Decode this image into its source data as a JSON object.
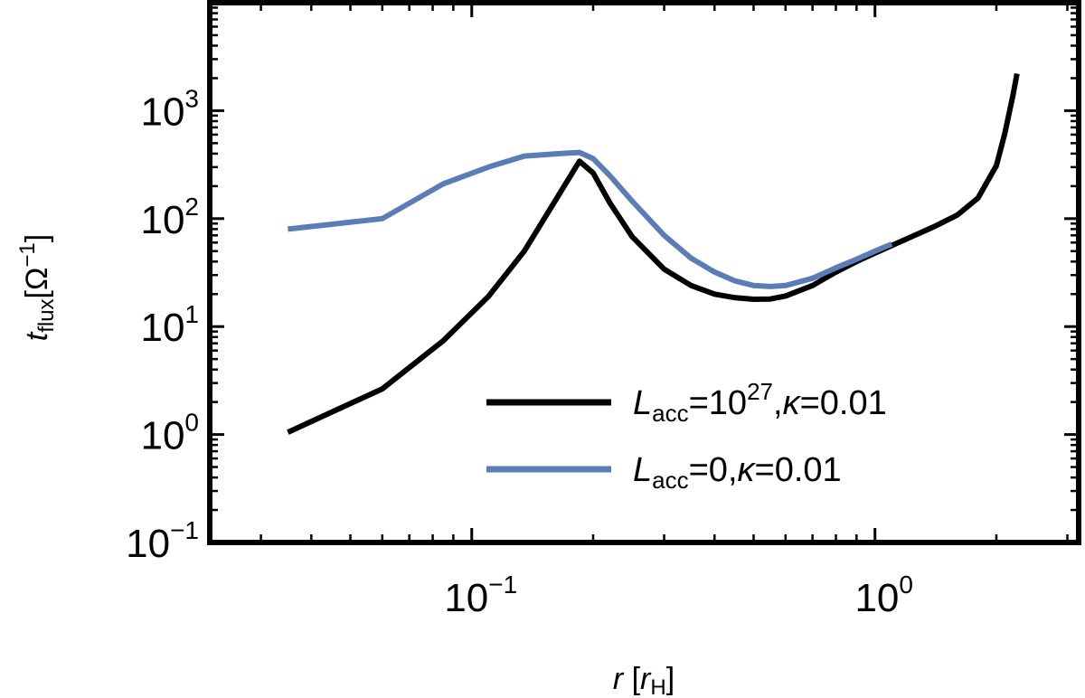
{
  "chart_data": {
    "type": "line",
    "xscale": "log",
    "yscale": "log",
    "xlim": [
      0.0224,
      3.2
    ],
    "ylim": [
      0.1,
      10000
    ],
    "xlabel": {
      "italic": "r",
      "open": " [",
      "italic2": "r",
      "sub": "H",
      "close": "]"
    },
    "ylabel": {
      "italic": "t",
      "sub": "flux",
      "bracket": "[Ω",
      "sup": "−1",
      "close": "]"
    },
    "xticks": [
      {
        "value": 0.1,
        "base": "10",
        "exp": "−1"
      },
      {
        "value": 1,
        "base": "10",
        "exp": "0"
      }
    ],
    "yticks": [
      {
        "value": 0.1,
        "base": "10",
        "exp": "−1"
      },
      {
        "value": 1,
        "base": "10",
        "exp": "0"
      },
      {
        "value": 10,
        "base": "10",
        "exp": "1"
      },
      {
        "value": 100,
        "base": "10",
        "exp": "2"
      },
      {
        "value": 1000,
        "base": "10",
        "exp": "3"
      }
    ],
    "legend_position": "lower-right",
    "series": [
      {
        "name": "Lacc=10^27, κ=0.01",
        "legend": {
          "sym": "L",
          "sub": "acc",
          "eq": "=10",
          "sup": "27",
          "rest": ",",
          "kappa": "κ",
          "tail": "=0.01"
        },
        "color": "#000000",
        "x": [
          0.035,
          0.06,
          0.085,
          0.11,
          0.135,
          0.165,
          0.185,
          0.2,
          0.22,
          0.25,
          0.3,
          0.35,
          0.4,
          0.45,
          0.5,
          0.55,
          0.6,
          0.7,
          0.8,
          0.9,
          1.0,
          1.2,
          1.4,
          1.6,
          1.8,
          2.0,
          2.1,
          2.2,
          2.25
        ],
        "y": [
          1.05,
          2.65,
          7.4,
          19,
          50,
          170,
          340,
          265,
          140,
          68,
          34,
          24,
          20,
          18.5,
          17.9,
          18.0,
          19.2,
          24,
          32,
          40,
          48,
          65,
          84,
          108,
          155,
          310,
          620,
          1400,
          2200
        ]
      },
      {
        "name": "Lacc=0, κ=0.01",
        "legend": {
          "sym": "L",
          "sub": "acc",
          "eq": "=0",
          "sup": "",
          "rest": ",",
          "kappa": "κ",
          "tail": "=0.01"
        },
        "color": "#5b7db5",
        "x": [
          0.035,
          0.06,
          0.085,
          0.11,
          0.135,
          0.165,
          0.185,
          0.2,
          0.22,
          0.25,
          0.3,
          0.35,
          0.4,
          0.45,
          0.5,
          0.55,
          0.6,
          0.7,
          0.8,
          0.9,
          1.0,
          1.1
        ],
        "y": [
          80,
          100,
          210,
          300,
          380,
          400,
          410,
          360,
          250,
          145,
          70,
          43,
          32,
          26.5,
          24,
          23.5,
          24,
          28,
          35,
          42,
          50,
          58
        ]
      }
    ]
  }
}
